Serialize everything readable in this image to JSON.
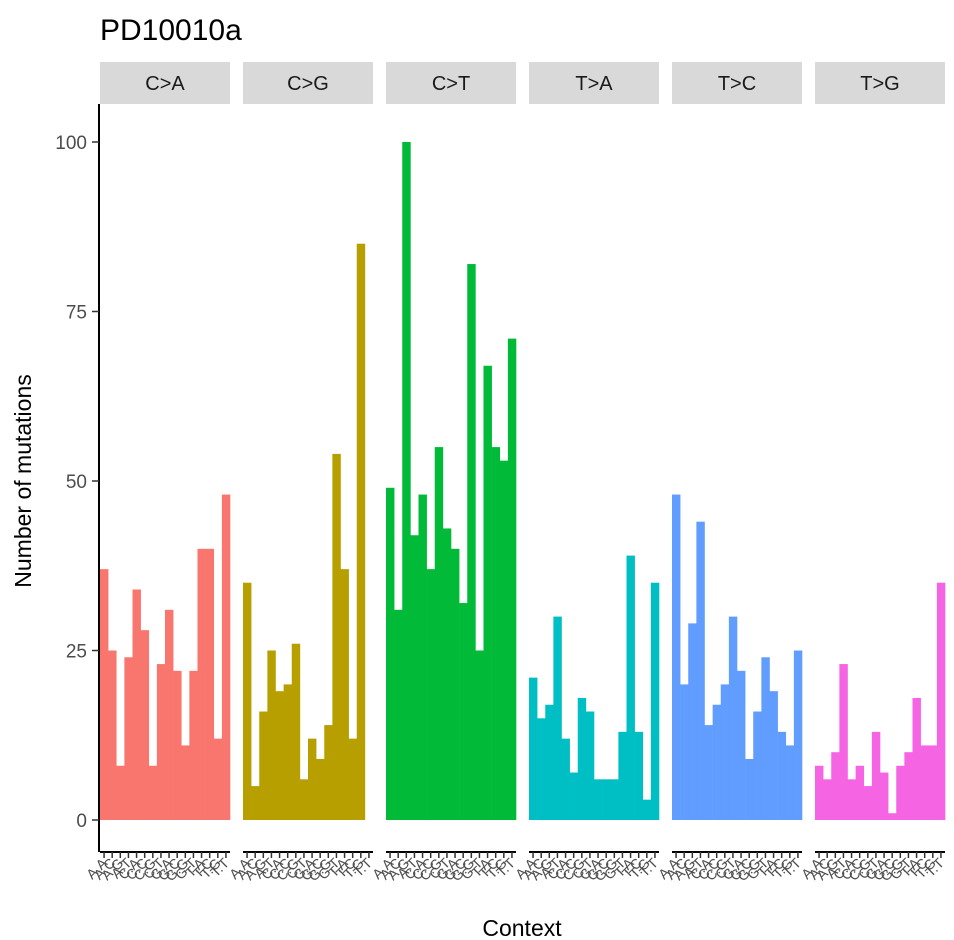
{
  "chart_data": {
    "type": "bar",
    "title": "PD10010a",
    "xlabel": "Context",
    "ylabel": "Number of mutations",
    "ylim": [
      0,
      105
    ],
    "yticks": [
      0,
      25,
      50,
      75,
      100
    ],
    "grid": false,
    "legend": "none",
    "categories": [
      "A.A",
      "A.C",
      "A.G",
      "A.T",
      "C.A",
      "C.C",
      "C.G",
      "C.T",
      "G.A",
      "G.C",
      "G.G",
      "G.T",
      "T.A",
      "T.C",
      "T.G",
      "T.T"
    ],
    "panels": [
      {
        "label": "C>A",
        "color": "#F8766D",
        "values": [
          37,
          25,
          8,
          24,
          34,
          28,
          8,
          23,
          31,
          22,
          11,
          22,
          40,
          40,
          12,
          48
        ]
      },
      {
        "label": "C>G",
        "color": "#B79F00",
        "values": [
          35,
          5,
          16,
          25,
          19,
          20,
          26,
          6,
          12,
          9,
          14,
          54,
          37,
          12,
          85,
          0
        ]
      },
      {
        "label": "C>T",
        "color": "#00BA38",
        "values": [
          49,
          31,
          100,
          42,
          48,
          37,
          55,
          43,
          40,
          32,
          82,
          25,
          67,
          55,
          53,
          71
        ]
      },
      {
        "label": "T>A",
        "color": "#00BFC4",
        "values": [
          21,
          15,
          17,
          30,
          12,
          7,
          18,
          16,
          6,
          6,
          6,
          13,
          39,
          13,
          3,
          35
        ]
      },
      {
        "label": "T>C",
        "color": "#619CFF",
        "values": [
          48,
          20,
          29,
          44,
          14,
          17,
          20,
          30,
          22,
          9,
          16,
          24,
          19,
          13,
          11,
          25
        ]
      },
      {
        "label": "T>G",
        "color": "#F564E3",
        "values": [
          8,
          6,
          10,
          23,
          6,
          8,
          5,
          13,
          7,
          1,
          8,
          10,
          18,
          11,
          11,
          35
        ]
      }
    ]
  }
}
